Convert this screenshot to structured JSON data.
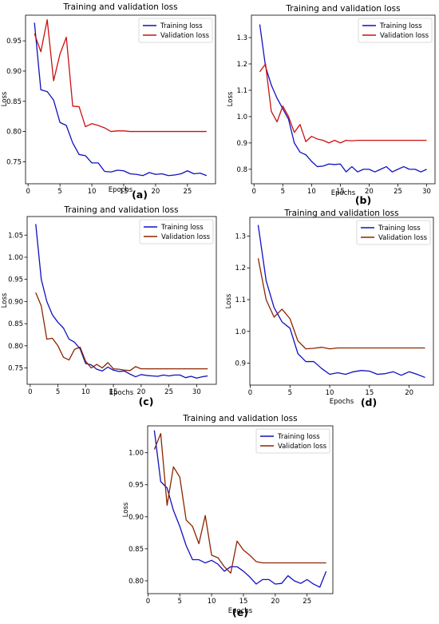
{
  "chart_data": [
    {
      "id": "a",
      "type": "line",
      "title": "Training and validation loss",
      "panel_label": "(a)",
      "xlabel": "Epochs",
      "ylabel": "Loss",
      "xlim": [
        -0.4,
        29.4
      ],
      "ylim": [
        0.7135,
        0.9925
      ],
      "xticks": [
        0,
        5,
        10,
        15,
        20,
        25
      ],
      "yticks": [
        0.75,
        0.8,
        0.85,
        0.9,
        0.95
      ],
      "ytick_labels": [
        "0.75",
        "0.80",
        "0.85",
        "0.90",
        "0.95"
      ],
      "legend": "top-right",
      "series": [
        {
          "name": "Training loss",
          "color": "#1010c0",
          "x": [
            1,
            2,
            3,
            4,
            5,
            6,
            7,
            8,
            9,
            10,
            11,
            12,
            13,
            14,
            15,
            16,
            17,
            18,
            19,
            20,
            21,
            22,
            23,
            24,
            25,
            26,
            27,
            28
          ],
          "values": [
            0.98,
            0.869,
            0.866,
            0.852,
            0.815,
            0.81,
            0.781,
            0.762,
            0.76,
            0.748,
            0.748,
            0.734,
            0.733,
            0.736,
            0.735,
            0.73,
            0.729,
            0.727,
            0.732,
            0.729,
            0.73,
            0.727,
            0.728,
            0.73,
            0.735,
            0.73,
            0.731,
            0.727
          ]
        },
        {
          "name": "Validation loss",
          "color": "#cc1010",
          "x": [
            1,
            2,
            3,
            4,
            5,
            6,
            7,
            8,
            9,
            10,
            11,
            12,
            13,
            14,
            15,
            16,
            17,
            18,
            19,
            20,
            21,
            22,
            23,
            24,
            25,
            26,
            27,
            28
          ],
          "values": [
            0.962,
            0.932,
            0.985,
            0.884,
            0.928,
            0.956,
            0.842,
            0.841,
            0.808,
            0.813,
            0.81,
            0.806,
            0.8,
            0.801,
            0.801,
            0.8,
            0.8,
            0.8,
            0.8,
            0.8,
            0.8,
            0.8,
            0.8,
            0.8,
            0.8,
            0.8,
            0.8,
            0.8
          ]
        }
      ]
    },
    {
      "id": "b",
      "type": "line",
      "title": "Training and validation loss",
      "panel_label": "(b)",
      "xlabel": "Epochs",
      "ylabel": "Loss",
      "xlim": [
        -0.45,
        31.45
      ],
      "ylim": [
        0.745,
        1.385
      ],
      "xticks": [
        0,
        5,
        10,
        15,
        20,
        25,
        30
      ],
      "yticks": [
        0.8,
        0.9,
        1.0,
        1.1,
        1.2,
        1.3
      ],
      "ytick_labels": [
        "0.8",
        "0.9",
        "1.0",
        "1.1",
        "1.2",
        "1.3"
      ],
      "legend": "top-right",
      "series": [
        {
          "name": "Training loss",
          "color": "#1010c0",
          "x": [
            1,
            2,
            3,
            4,
            5,
            6,
            7,
            8,
            9,
            10,
            11,
            12,
            13,
            14,
            15,
            16,
            17,
            18,
            19,
            20,
            21,
            22,
            23,
            24,
            25,
            26,
            27,
            28,
            29,
            30
          ],
          "values": [
            1.35,
            1.19,
            1.12,
            1.07,
            1.03,
            0.99,
            0.9,
            0.865,
            0.855,
            0.83,
            0.81,
            0.812,
            0.82,
            0.818,
            0.82,
            0.79,
            0.81,
            0.79,
            0.8,
            0.8,
            0.79,
            0.8,
            0.81,
            0.79,
            0.8,
            0.81,
            0.8,
            0.8,
            0.79,
            0.8
          ]
        },
        {
          "name": "Validation loss",
          "color": "#cc1010",
          "x": [
            1,
            2,
            3,
            4,
            5,
            6,
            7,
            8,
            9,
            10,
            11,
            12,
            13,
            14,
            15,
            16,
            17,
            18,
            19,
            20,
            21,
            22,
            23,
            24,
            25,
            26,
            27,
            28,
            29,
            30
          ],
          "values": [
            1.17,
            1.2,
            1.02,
            0.98,
            1.04,
            1.0,
            0.94,
            0.97,
            0.905,
            0.925,
            0.915,
            0.91,
            0.9,
            0.91,
            0.9,
            0.91,
            0.908,
            0.91,
            0.91,
            0.91,
            0.91,
            0.91,
            0.91,
            0.91,
            0.91,
            0.91,
            0.91,
            0.91,
            0.91,
            0.91
          ]
        }
      ]
    },
    {
      "id": "c",
      "type": "line",
      "title": "Training and validation loss",
      "panel_label": "(c)",
      "xlabel": "Epochs",
      "ylabel": "Loss",
      "xlim": [
        -0.55,
        33.55
      ],
      "ylim": [
        0.713,
        1.092
      ],
      "xticks": [
        0,
        5,
        10,
        15,
        20,
        25,
        30
      ],
      "yticks": [
        0.75,
        0.8,
        0.85,
        0.9,
        0.95,
        1.0,
        1.05
      ],
      "ytick_labels": [
        "0.75",
        "0.80",
        "0.85",
        "0.90",
        "0.95",
        "1.00",
        "1.05"
      ],
      "legend": "top-right",
      "series": [
        {
          "name": "Training loss",
          "color": "#1010c0",
          "x": [
            1,
            2,
            3,
            4,
            5,
            6,
            7,
            8,
            9,
            10,
            11,
            12,
            13,
            14,
            15,
            16,
            17,
            18,
            19,
            20,
            21,
            22,
            23,
            24,
            25,
            26,
            27,
            28,
            29,
            30,
            31,
            32
          ],
          "values": [
            1.075,
            0.95,
            0.9,
            0.87,
            0.853,
            0.84,
            0.815,
            0.808,
            0.793,
            0.76,
            0.757,
            0.747,
            0.743,
            0.752,
            0.745,
            0.742,
            0.743,
            0.736,
            0.73,
            0.735,
            0.733,
            0.732,
            0.731,
            0.734,
            0.732,
            0.734,
            0.734,
            0.728,
            0.731,
            0.727,
            0.73,
            0.732
          ]
        },
        {
          "name": "Validation loss",
          "color": "#8b2500",
          "x": [
            1,
            2,
            3,
            4,
            5,
            6,
            7,
            8,
            9,
            10,
            11,
            12,
            13,
            14,
            15,
            16,
            17,
            18,
            19,
            20,
            21,
            22,
            23,
            24,
            25,
            26,
            27,
            28,
            29,
            30,
            31,
            32
          ],
          "values": [
            0.92,
            0.89,
            0.815,
            0.817,
            0.8,
            0.774,
            0.768,
            0.792,
            0.797,
            0.765,
            0.75,
            0.758,
            0.75,
            0.762,
            0.748,
            0.747,
            0.745,
            0.744,
            0.753,
            0.748,
            0.748,
            0.748,
            0.748,
            0.748,
            0.748,
            0.748,
            0.748,
            0.748,
            0.748,
            0.748,
            0.748,
            0.748
          ]
        }
      ]
    },
    {
      "id": "d",
      "type": "line",
      "title": "Training and validation loss",
      "panel_label": "(d)",
      "xlabel": "Epochs",
      "ylabel": "Loss",
      "xlim": [
        -0.05,
        23.05
      ],
      "ylim": [
        0.831,
        1.359
      ],
      "xticks": [
        0,
        5,
        10,
        15,
        20
      ],
      "yticks": [
        0.9,
        1.0,
        1.1,
        1.2,
        1.3
      ],
      "ytick_labels": [
        "0.9",
        "1.0",
        "1.1",
        "1.2",
        "1.3"
      ],
      "legend": "top-right",
      "series": [
        {
          "name": "Training loss",
          "color": "#1010c0",
          "x": [
            1,
            2,
            3,
            4,
            5,
            6,
            7,
            8,
            9,
            10,
            11,
            12,
            13,
            14,
            15,
            16,
            17,
            18,
            19,
            20,
            21,
            22
          ],
          "values": [
            1.335,
            1.16,
            1.075,
            1.03,
            1.01,
            0.93,
            0.905,
            0.905,
            0.883,
            0.865,
            0.87,
            0.865,
            0.873,
            0.877,
            0.875,
            0.865,
            0.867,
            0.873,
            0.862,
            0.873,
            0.865,
            0.855
          ]
        },
        {
          "name": "Validation loss",
          "color": "#8b2500",
          "x": [
            1,
            2,
            3,
            4,
            5,
            6,
            7,
            8,
            9,
            10,
            11,
            12,
            13,
            14,
            15,
            16,
            17,
            18,
            19,
            20,
            21,
            22
          ],
          "values": [
            1.23,
            1.1,
            1.045,
            1.07,
            1.04,
            0.97,
            0.945,
            0.947,
            0.95,
            0.945,
            0.948,
            0.948,
            0.948,
            0.948,
            0.948,
            0.948,
            0.948,
            0.948,
            0.948,
            0.948,
            0.948,
            0.948
          ]
        }
      ]
    },
    {
      "id": "e",
      "type": "line",
      "title": "Training and validation loss",
      "panel_label": "(e)",
      "xlabel": "Epochs",
      "ylabel": "Loss",
      "xlim": [
        -0.05,
        29.05
      ],
      "ylim": [
        0.78,
        1.042
      ],
      "xticks": [
        0,
        5,
        10,
        15,
        20,
        25
      ],
      "yticks": [
        0.8,
        0.85,
        0.9,
        0.95,
        1.0
      ],
      "ytick_labels": [
        "0.80",
        "0.85",
        "0.90",
        "0.95",
        "1.00"
      ],
      "legend": "top-right",
      "series": [
        {
          "name": "Training loss",
          "color": "#1010c0",
          "x": [
            1,
            2,
            3,
            4,
            5,
            6,
            7,
            8,
            9,
            10,
            11,
            12,
            13,
            14,
            15,
            16,
            17,
            18,
            19,
            20,
            21,
            22,
            23,
            24,
            25,
            26,
            27,
            28
          ],
          "values": [
            1.035,
            0.955,
            0.945,
            0.91,
            0.885,
            0.855,
            0.833,
            0.833,
            0.828,
            0.832,
            0.826,
            0.815,
            0.822,
            0.822,
            0.815,
            0.806,
            0.795,
            0.802,
            0.802,
            0.795,
            0.796,
            0.808,
            0.8,
            0.796,
            0.802,
            0.795,
            0.79,
            0.815
          ]
        },
        {
          "name": "Validation loss",
          "color": "#8b2500",
          "x": [
            1,
            2,
            3,
            4,
            5,
            6,
            7,
            8,
            9,
            10,
            11,
            12,
            13,
            14,
            15,
            16,
            17,
            18,
            19,
            20,
            21,
            22,
            23,
            24,
            25,
            26,
            27,
            28
          ],
          "values": [
            1.005,
            1.03,
            0.918,
            0.978,
            0.962,
            0.895,
            0.885,
            0.858,
            0.902,
            0.84,
            0.836,
            0.822,
            0.812,
            0.862,
            0.848,
            0.84,
            0.83,
            0.828,
            0.828,
            0.828,
            0.828,
            0.828,
            0.828,
            0.828,
            0.828,
            0.828,
            0.828,
            0.828
          ]
        }
      ]
    }
  ]
}
